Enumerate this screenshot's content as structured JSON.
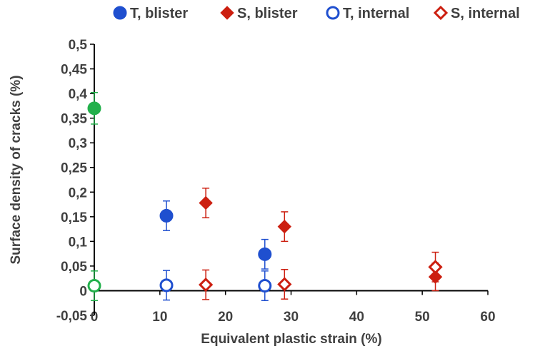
{
  "chart_data": {
    "type": "scatter",
    "title": "",
    "xlabel": "Equivalent plastic strain (%)",
    "ylabel": "Surface density of cracks (%)",
    "xlim": [
      0,
      60
    ],
    "ylim": [
      -0.05,
      0.5
    ],
    "x_ticks": [
      "0",
      "10",
      "20",
      "30",
      "40",
      "50",
      "60"
    ],
    "y_ticks": [
      "-0,05",
      "0",
      "0,05",
      "0,1",
      "0,15",
      "0,2",
      "0,25",
      "0,3",
      "0,35",
      "0,4",
      "0,45",
      "0,5"
    ],
    "grid": false,
    "legend_position": "top",
    "series": [
      {
        "name": "T, blister",
        "marker": "circle-filled",
        "color": "#1f4fcf",
        "points": [
          {
            "x": 11,
            "y": 0.152,
            "err": 0.03
          },
          {
            "x": 26,
            "y": 0.074,
            "err": 0.03
          }
        ]
      },
      {
        "name": "S, blister",
        "marker": "diamond-filled",
        "color": "#cc1f10",
        "points": [
          {
            "x": 17,
            "y": 0.178,
            "err": 0.03
          },
          {
            "x": 29,
            "y": 0.13,
            "err": 0.03
          },
          {
            "x": 52,
            "y": 0.028,
            "err": 0.028
          }
        ]
      },
      {
        "name": "T, internal",
        "marker": "circle-open",
        "color": "#1f4fcf",
        "points": [
          {
            "x": 11,
            "y": 0.011,
            "err": 0.03
          },
          {
            "x": 26,
            "y": 0.01,
            "err": 0.03
          }
        ]
      },
      {
        "name": "S, internal",
        "marker": "diamond-open",
        "color": "#cc1f10",
        "points": [
          {
            "x": 17,
            "y": 0.012,
            "err": 0.03
          },
          {
            "x": 29,
            "y": 0.013,
            "err": 0.03
          },
          {
            "x": 52,
            "y": 0.048,
            "err": 0.03
          }
        ]
      },
      {
        "marker": "circle-filled",
        "color": "#22b04b",
        "points": [
          {
            "x": 0,
            "y": 0.37,
            "err": 0.032
          }
        ]
      },
      {
        "marker": "circle-open",
        "color": "#22b04b",
        "points": [
          {
            "x": 0,
            "y": 0.01,
            "err": 0.03
          }
        ]
      }
    ]
  }
}
